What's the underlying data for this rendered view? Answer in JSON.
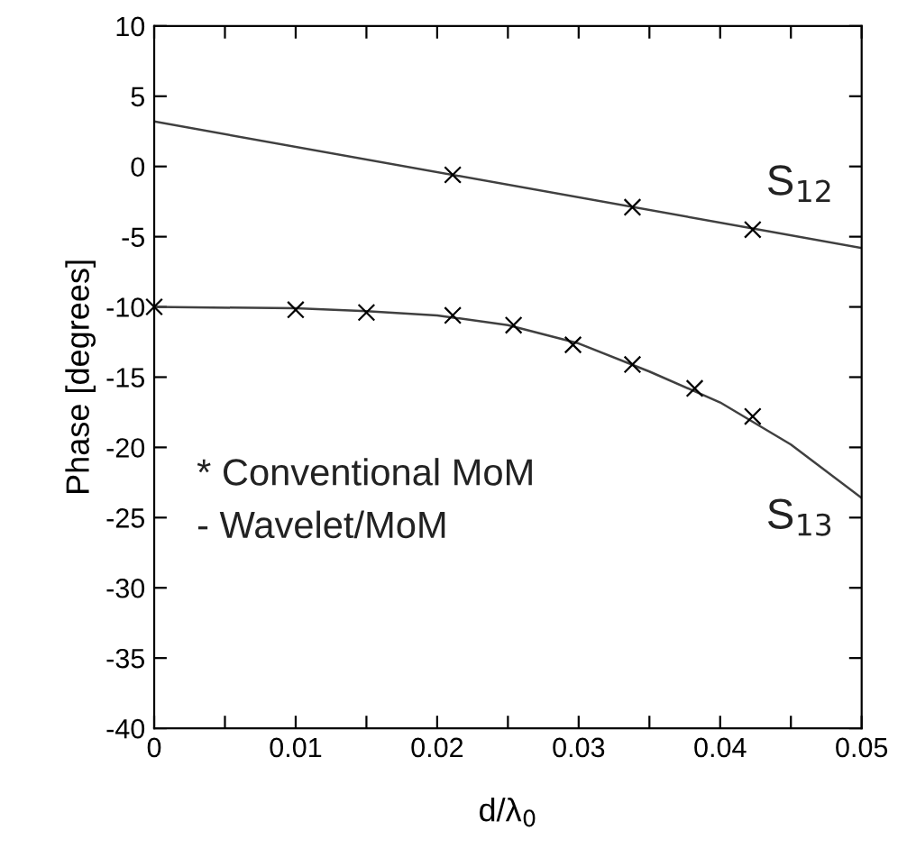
{
  "chart_data": {
    "type": "line",
    "xlabel": "d/λ$_{0}$",
    "ylabel": "Phase [degrees]",
    "xlim": [
      0,
      0.05
    ],
    "ylim": [
      -40,
      10
    ],
    "xticks": [
      0,
      {
        "value": 0.005,
        "label": null
      },
      0.01,
      {
        "value": 0.015,
        "label": null
      },
      0.02,
      {
        "value": 0.025,
        "label": null
      },
      0.03,
      {
        "value": 0.035,
        "label": null
      },
      0.04,
      {
        "value": 0.045,
        "label": null
      },
      0.05
    ],
    "yticks": [
      -40,
      -35,
      -30,
      -25,
      -20,
      -15,
      -10,
      -5,
      0,
      5,
      10
    ],
    "grid": false,
    "legend": false,
    "series": [
      {
        "color": "#404040",
        "x": [
          0,
          0.05
        ],
        "values": [
          3.2,
          -5.8
        ]
      },
      {
        "color": "#404040",
        "x": [
          0,
          0.01,
          0.015,
          0.02,
          0.025,
          0.03,
          0.035,
          0.04,
          0.045,
          0.05
        ],
        "values": [
          -10,
          -10.1,
          -10.3,
          -10.6,
          -11.3,
          -12.6,
          -14.6,
          -16.8,
          -19.8,
          -23.6
        ]
      },
      {
        "type": "scatter",
        "color": "#000000",
        "marker": "cross",
        "x": [
          0.0211,
          0.0338,
          0.0423
        ],
        "values": [
          -0.6,
          -2.9,
          -4.5
        ]
      },
      {
        "type": "scatter",
        "color": "#000000",
        "marker": "cross",
        "x": [
          0,
          0.01,
          0.015,
          0.0211,
          0.0254,
          0.0296,
          0.0338,
          0.0382,
          0.0423
        ],
        "values": [
          -10,
          -10.2,
          -10.4,
          -10.6,
          -11.3,
          -12.7,
          -14.1,
          -15.8,
          -17.8
        ]
      }
    ],
    "annotations": [
      "S$_{12}$",
      "S$_{13}$",
      "* Conventional MoM",
      "- Wavelet/MoM"
    ]
  }
}
